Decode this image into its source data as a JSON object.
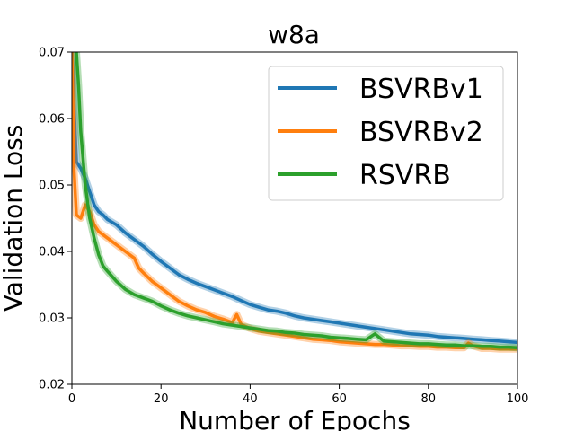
{
  "chart_data": {
    "type": "line",
    "title": "w8a",
    "xlabel": "Number of Epochs",
    "ylabel": "Validation Loss",
    "xlim": [
      0,
      100
    ],
    "ylim": [
      0.02,
      0.07
    ],
    "xticks": [
      0,
      20,
      40,
      60,
      80,
      100
    ],
    "yticks": [
      0.02,
      0.03,
      0.04,
      0.05,
      0.06,
      0.07
    ],
    "xtick_labels": [
      "0",
      "20",
      "40",
      "60",
      "80",
      "100"
    ],
    "ytick_labels": [
      "0.02",
      "0.03",
      "0.04",
      "0.05",
      "0.06",
      "0.07"
    ],
    "legend_position": "top-right",
    "series": [
      {
        "name": "BSVRBv1",
        "color": "#1f77b4",
        "x": [
          0,
          1,
          2,
          3,
          4,
          5,
          6,
          7,
          8,
          10,
          12,
          14,
          16,
          18,
          20,
          22,
          24,
          26,
          28,
          30,
          32,
          34,
          36,
          38,
          40,
          42,
          44,
          46,
          48,
          50,
          52,
          54,
          56,
          58,
          60,
          62,
          64,
          66,
          68,
          70,
          72,
          74,
          76,
          78,
          80,
          82,
          84,
          86,
          88,
          90,
          92,
          94,
          96,
          98,
          100
        ],
        "y": [
          0.07,
          0.0535,
          0.0525,
          0.051,
          0.049,
          0.047,
          0.046,
          0.0455,
          0.0448,
          0.044,
          0.0428,
          0.0418,
          0.0408,
          0.0396,
          0.0385,
          0.0375,
          0.0365,
          0.0358,
          0.0352,
          0.0347,
          0.0342,
          0.0337,
          0.0332,
          0.0326,
          0.032,
          0.0316,
          0.0312,
          0.031,
          0.0307,
          0.0303,
          0.03,
          0.0298,
          0.0296,
          0.0294,
          0.0292,
          0.029,
          0.0288,
          0.0286,
          0.0284,
          0.0282,
          0.028,
          0.0278,
          0.0276,
          0.0275,
          0.0274,
          0.0272,
          0.0271,
          0.027,
          0.0269,
          0.0268,
          0.0267,
          0.0266,
          0.0265,
          0.0264,
          0.0263
        ]
      },
      {
        "name": "BSVRBv2",
        "color": "#ff7f0e",
        "x": [
          0,
          0.5,
          1,
          2,
          3,
          4,
          5,
          6,
          8,
          10,
          12,
          14,
          15,
          16,
          18,
          20,
          22,
          24,
          26,
          28,
          30,
          32,
          34,
          36,
          37,
          38,
          40,
          42,
          44,
          46,
          48,
          50,
          52,
          54,
          56,
          58,
          60,
          62,
          64,
          66,
          68,
          70,
          72,
          74,
          76,
          78,
          80,
          82,
          84,
          86,
          88,
          89,
          90,
          92,
          94,
          96,
          98,
          100
        ],
        "y": [
          0.07,
          0.052,
          0.0455,
          0.045,
          0.047,
          0.046,
          0.044,
          0.043,
          0.042,
          0.041,
          0.04,
          0.039,
          0.0375,
          0.0368,
          0.0355,
          0.0345,
          0.0335,
          0.0325,
          0.0318,
          0.0312,
          0.0308,
          0.0302,
          0.0298,
          0.0293,
          0.0305,
          0.029,
          0.0284,
          0.028,
          0.0278,
          0.0276,
          0.0274,
          0.0272,
          0.027,
          0.0268,
          0.0267,
          0.0266,
          0.0264,
          0.0263,
          0.0262,
          0.0261,
          0.026,
          0.026,
          0.0259,
          0.0258,
          0.0258,
          0.0257,
          0.0257,
          0.0256,
          0.0256,
          0.0255,
          0.0255,
          0.0262,
          0.0258,
          0.0254,
          0.0254,
          0.0253,
          0.0253,
          0.0253
        ]
      },
      {
        "name": "RSVRB",
        "color": "#2ca02c",
        "x": [
          1,
          1.5,
          2,
          3,
          4,
          5,
          6,
          7,
          8,
          10,
          12,
          14,
          16,
          18,
          20,
          22,
          24,
          26,
          28,
          30,
          32,
          34,
          36,
          38,
          40,
          42,
          44,
          46,
          48,
          50,
          52,
          54,
          56,
          58,
          60,
          62,
          64,
          66,
          68,
          70,
          72,
          74,
          76,
          78,
          80,
          82,
          84,
          86,
          88,
          90,
          92,
          94,
          96,
          98,
          100
        ],
        "y": [
          0.07,
          0.065,
          0.058,
          0.05,
          0.045,
          0.042,
          0.0395,
          0.0378,
          0.037,
          0.0355,
          0.0343,
          0.0335,
          0.033,
          0.0325,
          0.0318,
          0.0312,
          0.0307,
          0.0303,
          0.03,
          0.0297,
          0.0294,
          0.0291,
          0.0289,
          0.0287,
          0.0285,
          0.0283,
          0.0281,
          0.028,
          0.0278,
          0.0277,
          0.0275,
          0.0274,
          0.0273,
          0.0271,
          0.027,
          0.0269,
          0.0268,
          0.0267,
          0.0276,
          0.0265,
          0.0264,
          0.0263,
          0.0262,
          0.0261,
          0.0261,
          0.026,
          0.0259,
          0.0259,
          0.0258,
          0.0258,
          0.0257,
          0.0257,
          0.0256,
          0.0256,
          0.0255
        ]
      }
    ]
  }
}
